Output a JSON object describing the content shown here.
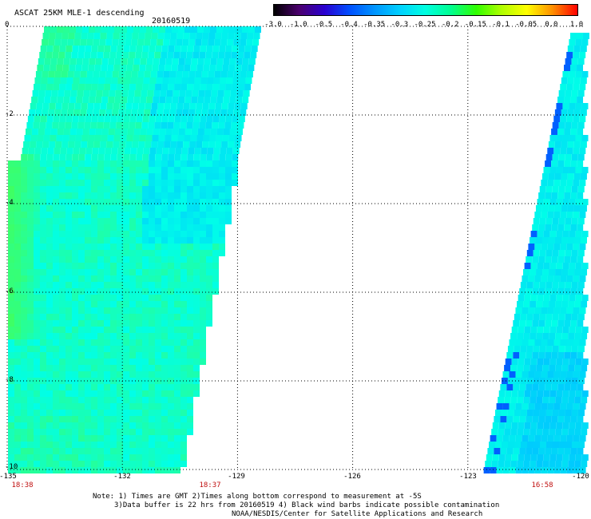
{
  "header": {
    "title": "ASCAT 25KM MLE-1 descending",
    "date": "20160519"
  },
  "colorbar": {
    "labels": [
      "-3.0",
      "-1.0",
      "-0.5",
      "-0.4",
      "-0.35",
      "-0.3",
      "-0.25",
      "-0.2",
      "-0.15",
      "-0.1",
      "-0.05",
      "0.0",
      "1.0"
    ],
    "colors": [
      "#000000",
      "#4b006e",
      "#2a00d0",
      "#0050ff",
      "#0096ff",
      "#00d2ff",
      "#00ffe0",
      "#00ff90",
      "#30ff00",
      "#b0ff00",
      "#ffff00",
      "#ff9000",
      "#ff0000"
    ]
  },
  "axes": {
    "y_ticks": [
      "0",
      "-2",
      "-4",
      "-6",
      "-8",
      "-10"
    ],
    "x_ticks": [
      "-135",
      "-132",
      "-129",
      "-126",
      "-123",
      "-120"
    ],
    "time_labels": [
      "18:38",
      "18:37",
      "16:58"
    ]
  },
  "footer": {
    "note1": "Note: 1) Times are GMT 2)Times along bottom correspond to measurement at -5S",
    "note2": "3)Data buffer is 22 hrs from 20160519 4) Black wind barbs indicate possible contamination",
    "note3": "NOAA/NESDIS/Center for Satellite Applications and Research"
  },
  "map": {
    "lon_range": [
      -135,
      -120
    ],
    "lat_range": [
      -10,
      0
    ],
    "swaths": [
      {
        "name": "west",
        "lon_min": -135,
        "lon_max_at_top": -128.4,
        "lon_max_at_bottom": -130.5
      },
      {
        "name": "east",
        "lon_min_at_top": -120.3,
        "lon_min_at_bottom": -122.6,
        "lon_max": -120
      }
    ],
    "palette": {
      "cyan": "#00ffe8",
      "aqua": "#00f4f4",
      "green": "#40ff60",
      "light_blue": "#00c8ff",
      "blue": "#0060ff"
    }
  }
}
